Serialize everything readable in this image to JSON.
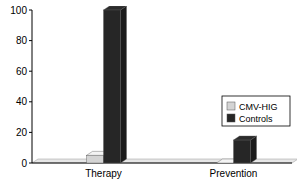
{
  "chart_data": {
    "type": "bar",
    "categories": [
      "Therapy",
      "Prevention"
    ],
    "series": [
      {
        "name": "CMV-HIG",
        "color": "#d4d4d4",
        "values": [
          5,
          0
        ]
      },
      {
        "name": "Controls",
        "color": "#262626",
        "values": [
          100,
          15
        ]
      }
    ],
    "ylim": [
      0,
      100
    ],
    "yticks": [
      0,
      20,
      40,
      60,
      80,
      100
    ],
    "grid": false,
    "legend": "right"
  }
}
